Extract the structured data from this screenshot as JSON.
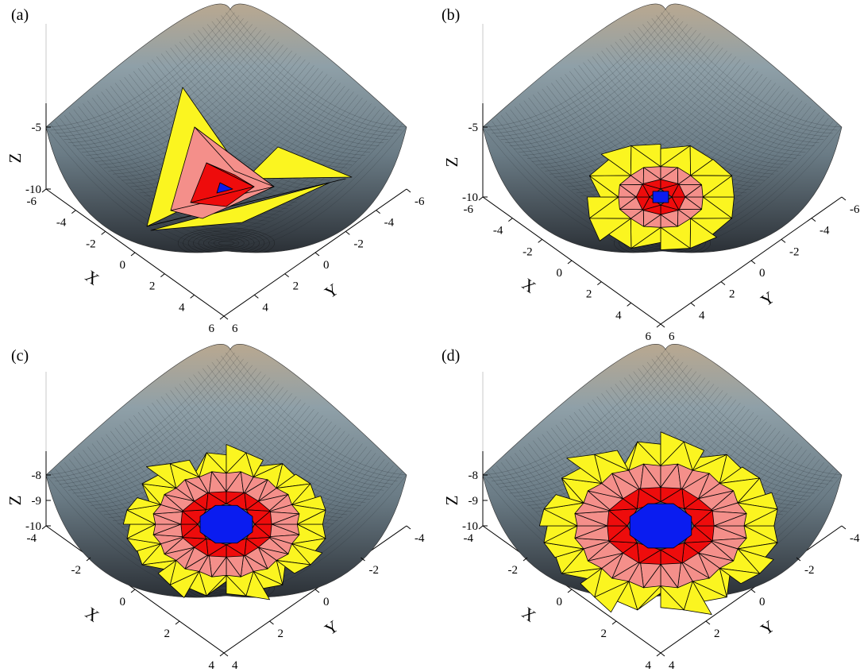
{
  "colors": {
    "blue": "#0a1cf0",
    "red": "#ee0c0c",
    "pink": "#f48f8a",
    "yellow": "#fbf520",
    "mesh_line": "#1e2128"
  },
  "panels": [
    {
      "id": "a",
      "label": "(a)",
      "z_ticks": [
        "-5",
        "-10"
      ],
      "x_ticks": [
        "-6",
        "-4",
        "-2",
        "0",
        "2",
        "4",
        "6"
      ],
      "y_ticks": [
        "-6",
        "-4",
        "-2",
        "0",
        "2",
        "4",
        "6"
      ],
      "x_label": "X",
      "y_label": "Y",
      "z_label": "Z"
    },
    {
      "id": "b",
      "label": "(b)",
      "z_ticks": [
        "-5",
        "-10"
      ],
      "x_ticks": [
        "-6",
        "-4",
        "-2",
        "0",
        "2",
        "4",
        "6"
      ],
      "y_ticks": [
        "-6",
        "-4",
        "-2",
        "0",
        "2",
        "4",
        "6"
      ],
      "x_label": "X",
      "y_label": "Y",
      "z_label": "Z"
    },
    {
      "id": "c",
      "label": "(c)",
      "z_ticks": [
        "-8",
        "-9",
        "-10"
      ],
      "x_ticks": [
        "-4",
        "-2",
        "0",
        "2",
        "4"
      ],
      "y_ticks": [
        "-4",
        "-2",
        "0",
        "2",
        "4"
      ],
      "x_label": "X",
      "y_label": "Y",
      "z_label": "Z"
    },
    {
      "id": "d",
      "label": "(d)",
      "z_ticks": [
        "-8",
        "-9",
        "-10"
      ],
      "x_ticks": [
        "-4",
        "-2",
        "0",
        "2",
        "4"
      ],
      "y_ticks": [
        "-4",
        "-2",
        "0",
        "2",
        "4"
      ],
      "x_label": "X",
      "y_label": "Y",
      "z_label": "Z"
    }
  ]
}
